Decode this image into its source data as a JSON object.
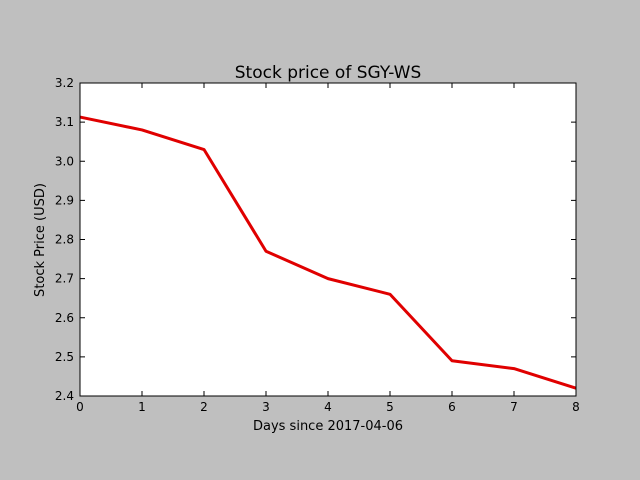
{
  "chart_data": {
    "type": "line",
    "title": "Stock price of SGY-WS",
    "xlabel": "Days since 2017-04-06",
    "ylabel": "Stock Price (USD)",
    "xlim": [
      0,
      8
    ],
    "ylim": [
      2.4,
      3.2
    ],
    "x_ticks": [
      "0",
      "1",
      "2",
      "3",
      "4",
      "5",
      "6",
      "7",
      "8"
    ],
    "y_ticks": [
      "2.4",
      "2.5",
      "2.6",
      "2.7",
      "2.8",
      "2.9",
      "3.0",
      "3.1",
      "3.2"
    ],
    "grid": false,
    "legend": "none",
    "series": [
      {
        "x": [
          0,
          1,
          2,
          3,
          4,
          5,
          6,
          7,
          8
        ],
        "y": [
          3.113,
          3.08,
          3.03,
          2.77,
          2.7,
          2.66,
          2.49,
          2.47,
          2.42
        ],
        "color": "#e00000"
      }
    ],
    "colors": {
      "figure_background": "#bfbfbf",
      "plot_background": "#ffffff",
      "line": "#e00000"
    }
  }
}
